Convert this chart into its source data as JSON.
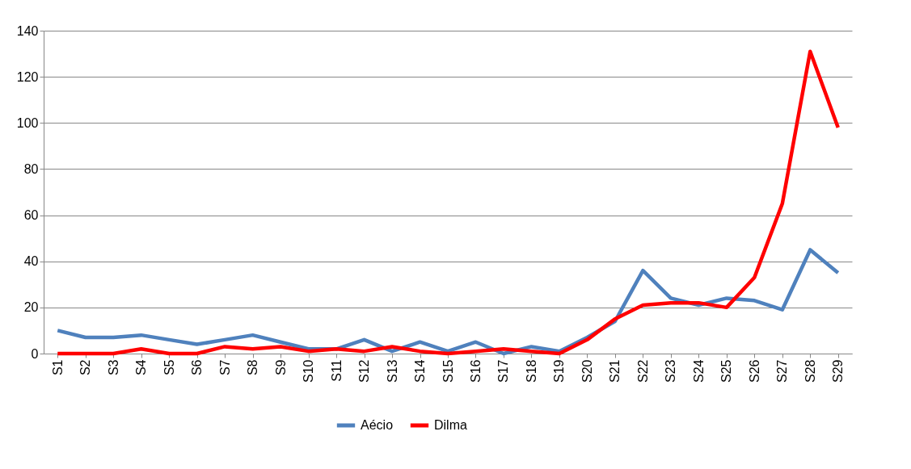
{
  "chart_data": {
    "type": "line",
    "categories": [
      "S1",
      "S2",
      "S3",
      "S4",
      "S5",
      "S6",
      "S7",
      "S8",
      "S9",
      "S10",
      "S11",
      "S12",
      "S13",
      "S14",
      "S15",
      "S16",
      "S17",
      "S18",
      "S19",
      "S20",
      "S21",
      "S22",
      "S23",
      "S24",
      "S25",
      "S26",
      "S27",
      "S28",
      "S29"
    ],
    "series": [
      {
        "name": "Aécio",
        "color": "#4f81bd",
        "values": [
          10,
          7,
          7,
          8,
          6,
          4,
          6,
          8,
          5,
          2,
          2,
          6,
          1,
          5,
          1,
          5,
          0,
          3,
          1,
          7,
          14,
          36,
          24,
          21,
          24,
          23,
          19,
          45,
          35
        ]
      },
      {
        "name": "Dilma",
        "color": "#ff0000",
        "values": [
          0,
          0,
          0,
          2,
          0,
          0,
          3,
          2,
          3,
          1,
          2,
          1,
          3,
          1,
          0,
          1,
          2,
          1,
          0,
          6,
          15,
          21,
          22,
          22,
          20,
          33,
          65,
          131,
          98
        ]
      }
    ],
    "ylim": [
      0,
      140
    ],
    "yticks": [
      0,
      20,
      40,
      60,
      80,
      100,
      120,
      140
    ],
    "grid": "y",
    "legend": "bottom",
    "marker": "none",
    "line_style": "solid"
  }
}
